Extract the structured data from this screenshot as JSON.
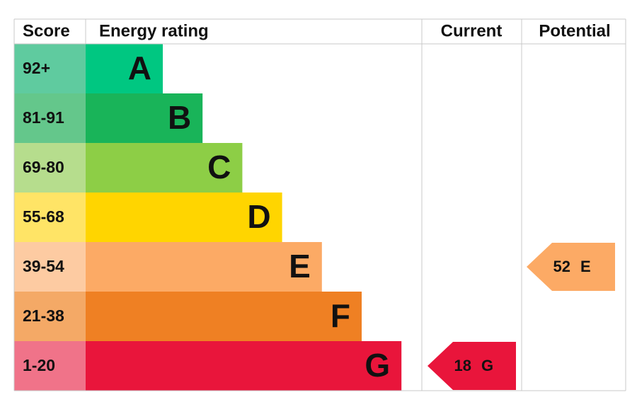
{
  "chart_data": {
    "type": "epc",
    "headers": [
      "Score",
      "Energy rating",
      "Current",
      "Potential"
    ],
    "bands": [
      {
        "score": "92+",
        "letter": "A",
        "color": "#00c781",
        "score_color": "#5fcb9f"
      },
      {
        "score": "81-91",
        "letter": "B",
        "color": "#19b459",
        "score_color": "#64c78b"
      },
      {
        "score": "69-80",
        "letter": "C",
        "color": "#8dce46",
        "score_color": "#b6dd8d"
      },
      {
        "score": "55-68",
        "letter": "D",
        "color": "#ffd500",
        "score_color": "#ffe466"
      },
      {
        "score": "39-54",
        "letter": "E",
        "color": "#fcaa65",
        "score_color": "#fdcba2"
      },
      {
        "score": "21-38",
        "letter": "F",
        "color": "#ef8023",
        "score_color": "#f4a966"
      },
      {
        "score": "1-20",
        "letter": "G",
        "color": "#e9153b",
        "score_color": "#f07389"
      }
    ],
    "current": {
      "value": 18,
      "letter": "G"
    },
    "potential": {
      "value": 52,
      "letter": "E"
    }
  }
}
